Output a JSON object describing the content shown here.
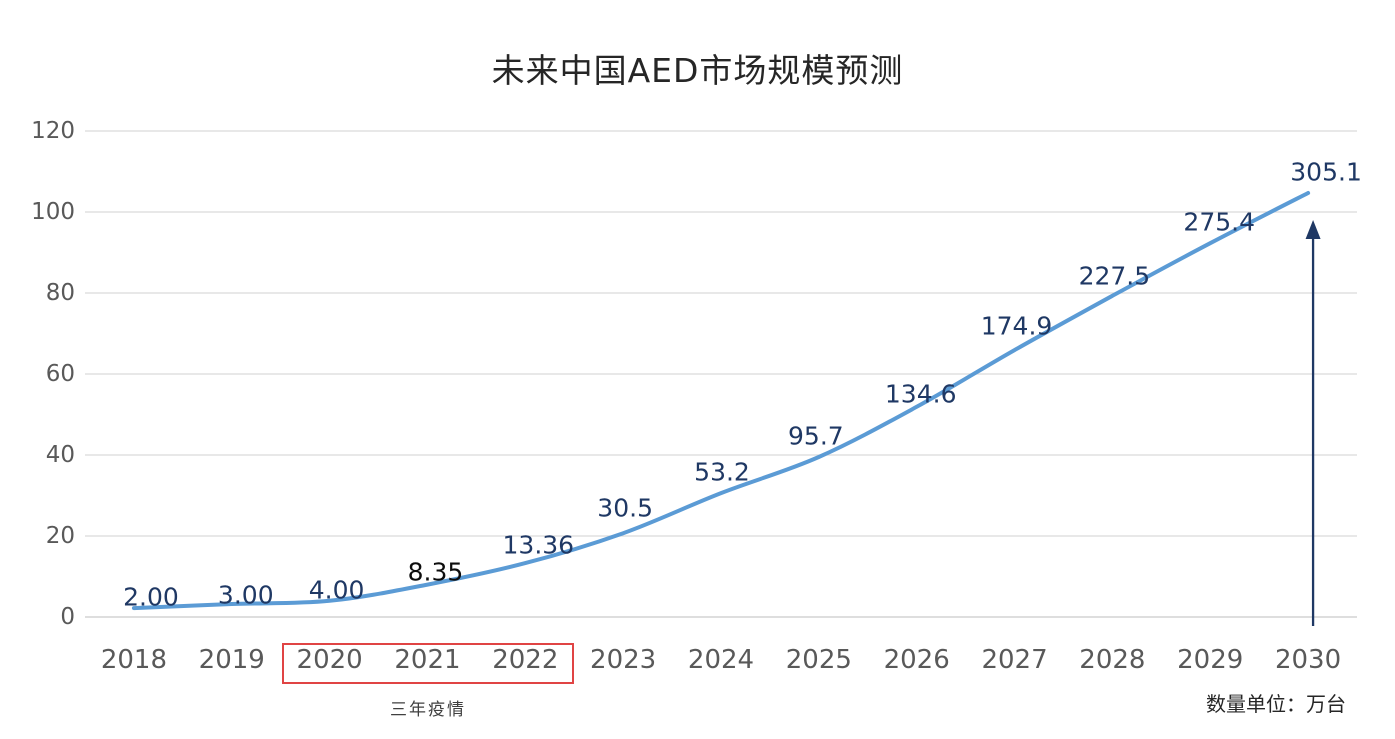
{
  "title": "未来中国AED市场规模预测",
  "unit_note": "数量单位：万台",
  "annotation": {
    "box_years": [
      "2020",
      "2021",
      "2022"
    ],
    "label": "三年疫情"
  },
  "colors": {
    "line": "#5B9BD5",
    "data_label": "#1F3864",
    "axis_text": "#595959",
    "gridline": "#D9D9D9",
    "axis_line": "#C9C9C9",
    "annotation_box": "#E04444",
    "arrow": "#1F3864",
    "title_text": "#262626"
  },
  "chart_data": {
    "type": "line",
    "title": "未来中国AED市场规模预测",
    "x": [
      "2018",
      "2019",
      "2020",
      "2021",
      "2022",
      "2023",
      "2024",
      "2025",
      "2026",
      "2027",
      "2028",
      "2029",
      "2030"
    ],
    "series": [
      {
        "name": "中国AED市场规模",
        "values": [
          2.0,
          3.0,
          4.0,
          8.35,
          13.36,
          30.5,
          53.2,
          95.7,
          134.6,
          174.9,
          227.5,
          275.4,
          305.1
        ]
      }
    ],
    "data_labels": [
      "2.00",
      "3.00",
      "4.00",
      "8.35",
      "13.36",
      "30.5",
      "53.2",
      "95.7",
      "134.6",
      "174.9",
      "227.5",
      "275.4",
      "305.1"
    ],
    "label_color_overrides": {
      "3": "#0D0D0D"
    },
    "plotted_axis_values": [
      2.2,
      3.2,
      4.0,
      8.0,
      13.3,
      20.7,
      30.6,
      39.5,
      51.9,
      65.9,
      79.3,
      92.3,
      104.7
    ],
    "ylim": [
      0,
      120
    ],
    "yticks": [
      0,
      20,
      40,
      60,
      80,
      100,
      120
    ],
    "grid": true,
    "legend": false,
    "xlabel": "",
    "ylabel": "",
    "unit": "万台",
    "annotations": [
      {
        "type": "box",
        "years": [
          "2020",
          "2021",
          "2022"
        ],
        "text": "三年疫情"
      },
      {
        "type": "up-arrow",
        "year": "2030"
      }
    ]
  }
}
